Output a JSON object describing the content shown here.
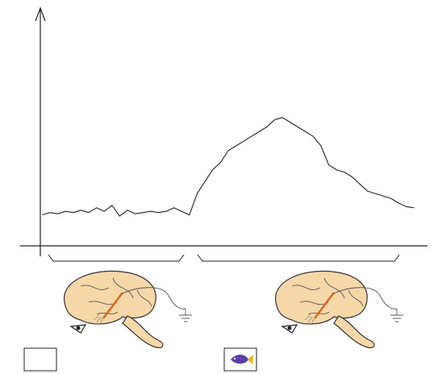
{
  "chart_data": {
    "type": "line",
    "x": [
      0.5,
      2.5,
      4.5,
      6.5,
      8.5,
      10.5,
      12.5,
      14.5,
      16.5,
      18.5,
      20.5,
      22.5,
      24.5,
      26.5,
      28.5,
      30.5,
      32.5,
      34.5,
      36.5,
      38.5,
      40.5,
      42.5,
      44.5,
      46.5,
      48.5,
      50.5,
      52.5,
      54.5,
      56.5,
      58.5,
      60.5,
      62.5,
      64.5,
      66.5,
      68.5,
      70.5,
      72.5,
      74.5,
      76.5,
      78.5,
      80.5,
      82.5,
      84.5,
      86.5,
      88.5,
      90.5,
      92.5,
      94.5,
      96.5
    ],
    "values": [
      13,
      14,
      13.5,
      14.5,
      14,
      15,
      14,
      16,
      14.5,
      17,
      12.5,
      15,
      13.5,
      14,
      14.5,
      14,
      14.5,
      16,
      14.5,
      13,
      22,
      27,
      32,
      35,
      40,
      42,
      44,
      46,
      48,
      50,
      53,
      54,
      52,
      50,
      48,
      46,
      42,
      34,
      32,
      31,
      29,
      26,
      23,
      22,
      21,
      20,
      18,
      16.5,
      16
    ],
    "color": "#222222",
    "xlim": [
      0,
      100
    ],
    "ylim": [
      0,
      100
    ]
  }
}
